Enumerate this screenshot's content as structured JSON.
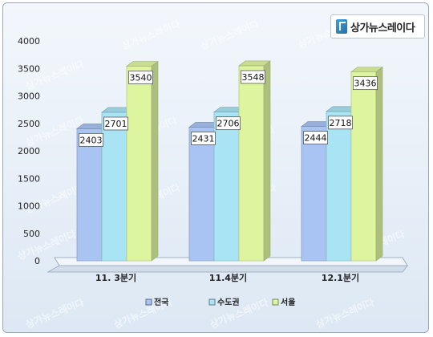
{
  "logo": {
    "text": "상가뉴스레이다"
  },
  "watermark": {
    "text": "상가뉴스레이다"
  },
  "chart_data": {
    "type": "bar",
    "categories": [
      "11. 3분기",
      "11.4분기",
      "12.1분기"
    ],
    "series": [
      {
        "name": "전국",
        "values": [
          2403,
          2431,
          2444
        ],
        "color": "#a9c4f2"
      },
      {
        "name": "수도권",
        "values": [
          2701,
          2706,
          2718
        ],
        "color": "#a9e4f4"
      },
      {
        "name": "서울",
        "values": [
          3540,
          3548,
          3436
        ],
        "color": "#def5a0"
      }
    ],
    "yticks": [
      0,
      500,
      1000,
      1500,
      2000,
      2500,
      3000,
      3500,
      4000
    ],
    "ylim": [
      0,
      4000
    ],
    "legend_position": "bottom",
    "grid": false,
    "bar_style": "3d"
  }
}
